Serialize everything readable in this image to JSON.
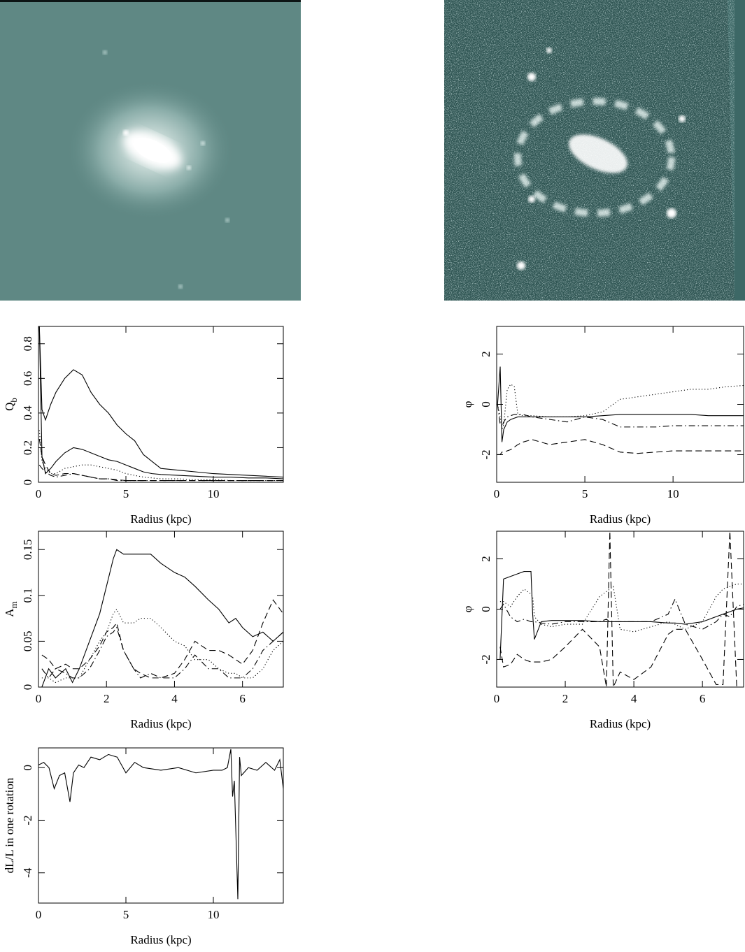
{
  "chart_data": [
    {
      "type": "line",
      "xlabel": "Radius (kpc)",
      "ylabel": "Q",
      "ylabel_sub": "b",
      "xlim": [
        0,
        14
      ],
      "xticks": [
        0,
        5,
        10
      ],
      "ylim": [
        0,
        0.9
      ],
      "yticks": [
        0,
        0.2,
        0.4,
        0.6,
        0.8
      ],
      "x": [
        0.05,
        0.2,
        0.4,
        0.7,
        1,
        1.5,
        2,
        2.5,
        3,
        3.5,
        4,
        4.5,
        5,
        5.5,
        6,
        6.5,
        7,
        8,
        9,
        10,
        11,
        12,
        13,
        14
      ],
      "series": [
        {
          "linestyle": "solid",
          "color": "#000000",
          "values": [
            0.9,
            0.42,
            0.36,
            0.45,
            0.52,
            0.6,
            0.65,
            0.62,
            0.52,
            0.45,
            0.4,
            0.33,
            0.28,
            0.24,
            0.16,
            0.12,
            0.08,
            0.07,
            0.06,
            0.05,
            0.045,
            0.04,
            0.035,
            0.03
          ]
        },
        {
          "linestyle": "solid",
          "color": "#000000",
          "values": [
            0.9,
            0.15,
            0.05,
            0.08,
            0.12,
            0.17,
            0.2,
            0.19,
            0.17,
            0.15,
            0.13,
            0.12,
            0.1,
            0.08,
            0.06,
            0.05,
            0.045,
            0.04,
            0.035,
            0.03,
            0.03,
            0.025,
            0.025,
            0.02
          ]
        },
        {
          "linestyle": "dotted",
          "color": "#000000",
          "values": [
            0.3,
            0.12,
            0.08,
            0.05,
            0.05,
            0.08,
            0.09,
            0.1,
            0.1,
            0.09,
            0.08,
            0.07,
            0.05,
            0.04,
            0.03,
            0.025,
            0.02,
            0.02,
            0.015,
            0.015,
            0.01,
            0.01,
            0.01,
            0.01
          ]
        },
        {
          "linestyle": "dashed",
          "color": "#000000",
          "values": [
            0.25,
            0.15,
            0.1,
            0.05,
            0.04,
            0.05,
            0.05,
            0.04,
            0.03,
            0.02,
            0.02,
            0.015,
            0.01,
            0.01,
            0.01,
            0.01,
            0.01,
            0.01,
            0.01,
            0.01,
            0.01,
            0.01,
            0.01,
            0.01
          ]
        },
        {
          "linestyle": "dashdot",
          "color": "#000000",
          "values": [
            0.1,
            0.08,
            0.06,
            0.04,
            0.03,
            0.04,
            0.05,
            0.04,
            0.03,
            0.02,
            0.02,
            0.01,
            0.01,
            0.01,
            0.01,
            0.01,
            0.01,
            0.01,
            0.01,
            0.01,
            0.01,
            0.01,
            0.01,
            0.01
          ]
        }
      ]
    },
    {
      "type": "line",
      "xlabel": "Radius (kpc)",
      "ylabel": "φ",
      "xlim": [
        0,
        14
      ],
      "xticks": [
        0,
        5,
        10
      ],
      "ylim": [
        -3.1,
        3.1
      ],
      "yticks": [
        -2,
        0,
        2
      ],
      "x": [
        0.05,
        0.2,
        0.3,
        0.4,
        0.6,
        0.8,
        1,
        1.2,
        1.5,
        2,
        3,
        4,
        5,
        6,
        7,
        8,
        9,
        10,
        11,
        12,
        13,
        14
      ],
      "series": [
        {
          "linestyle": "solid",
          "color": "#000000",
          "values": [
            0,
            1.5,
            -1.5,
            -1,
            -0.7,
            -0.6,
            -0.55,
            -0.5,
            -0.5,
            -0.5,
            -0.5,
            -0.5,
            -0.5,
            -0.45,
            -0.4,
            -0.4,
            -0.4,
            -0.4,
            -0.4,
            -0.45,
            -0.45,
            -0.45
          ]
        },
        {
          "linestyle": "dotted",
          "color": "#000000",
          "values": [
            0,
            -0.5,
            -1,
            -0.8,
            0.6,
            0.8,
            0.7,
            -0.4,
            -0.45,
            -0.45,
            -0.5,
            -0.5,
            -0.45,
            -0.3,
            0.2,
            0.3,
            0.4,
            0.5,
            0.6,
            0.6,
            0.7,
            0.75
          ]
        },
        {
          "linestyle": "dashed",
          "color": "#000000",
          "values": [
            -2,
            -2,
            -1.9,
            -1.9,
            -1.85,
            -1.8,
            -1.7,
            -1.6,
            -1.5,
            -1.4,
            -1.6,
            -1.5,
            -1.4,
            -1.6,
            -1.9,
            -1.95,
            -1.9,
            -1.85,
            -1.85,
            -1.85,
            -1.85,
            -1.85
          ]
        },
        {
          "linestyle": "dashdot",
          "color": "#000000",
          "values": [
            0,
            -0.8,
            -0.9,
            -0.7,
            -0.5,
            -0.45,
            -0.4,
            -0.4,
            -0.4,
            -0.5,
            -0.6,
            -0.7,
            -0.5,
            -0.6,
            -0.9,
            -0.9,
            -0.9,
            -0.85,
            -0.85,
            -0.85,
            -0.85,
            -0.85
          ]
        }
      ]
    },
    {
      "type": "line",
      "xlabel": "Radius (kpc)",
      "ylabel": "A",
      "ylabel_sub": "m",
      "xlim": [
        0,
        7.2
      ],
      "xticks": [
        0,
        2,
        4,
        6
      ],
      "ylim": [
        0,
        0.17
      ],
      "yticks": [
        0,
        0.05,
        0.1,
        0.15
      ],
      "x": [
        0.1,
        0.3,
        0.5,
        0.8,
        1,
        1.2,
        1.5,
        1.8,
        2,
        2.2,
        2.3,
        2.5,
        2.8,
        3,
        3.3,
        3.6,
        4,
        4.3,
        4.6,
        5,
        5.3,
        5.6,
        5.8,
        6,
        6.3,
        6.6,
        6.9,
        7.2
      ],
      "series": [
        {
          "linestyle": "solid",
          "color": "#000000",
          "values": [
            0,
            0.02,
            0.01,
            0.02,
            0.005,
            0.02,
            0.05,
            0.08,
            0.11,
            0.14,
            0.15,
            0.145,
            0.145,
            0.145,
            0.145,
            0.135,
            0.125,
            0.12,
            0.11,
            0.095,
            0.085,
            0.07,
            0.075,
            0.065,
            0.055,
            0.06,
            0.05,
            0.06
          ]
        },
        {
          "linestyle": "dotted",
          "color": "#000000",
          "values": [
            0.01,
            0.01,
            0.005,
            0.01,
            0.01,
            0.01,
            0.03,
            0.05,
            0.06,
            0.08,
            0.085,
            0.07,
            0.07,
            0.075,
            0.075,
            0.065,
            0.05,
            0.045,
            0.03,
            0.03,
            0.02,
            0.015,
            0.015,
            0.01,
            0.01,
            0.02,
            0.04,
            0.05
          ]
        },
        {
          "linestyle": "dashed",
          "color": "#000000",
          "values": [
            0.035,
            0.03,
            0.02,
            0.025,
            0.02,
            0.02,
            0.03,
            0.045,
            0.06,
            0.065,
            0.07,
            0.04,
            0.02,
            0.015,
            0.01,
            0.01,
            0.015,
            0.03,
            0.05,
            0.04,
            0.04,
            0.035,
            0.03,
            0.025,
            0.04,
            0.07,
            0.095,
            0.08
          ]
        },
        {
          "linestyle": "dashdot",
          "color": "#000000",
          "values": [
            0.02,
            0.01,
            0.02,
            0.015,
            0.01,
            0.01,
            0.02,
            0.04,
            0.055,
            0.06,
            0.065,
            0.04,
            0.02,
            0.01,
            0.015,
            0.01,
            0.01,
            0.02,
            0.035,
            0.02,
            0.02,
            0.01,
            0.01,
            0.01,
            0.02,
            0.04,
            0.05,
            0.06
          ]
        }
      ]
    },
    {
      "type": "line",
      "xlabel": "Radius (kpc)",
      "ylabel": "φ",
      "xlim": [
        0,
        7.2
      ],
      "xticks": [
        0,
        2,
        4,
        6
      ],
      "ylim": [
        -3.1,
        3.1
      ],
      "yticks": [
        -2,
        0,
        2
      ],
      "x": [
        0.1,
        0.2,
        0.4,
        0.6,
        0.8,
        1,
        1.05,
        1.1,
        1.3,
        1.6,
        2,
        2.5,
        3,
        3.2,
        3.3,
        3.4,
        3.6,
        4,
        4.5,
        5,
        5.2,
        5.5,
        6,
        6.4,
        6.6,
        6.8,
        7,
        7.2
      ],
      "series": [
        {
          "linestyle": "solid",
          "color": "#000000",
          "values": [
            -2,
            1.2,
            1.3,
            1.4,
            1.5,
            1.5,
            -0.2,
            -1.2,
            -0.5,
            -0.45,
            -0.45,
            -0.45,
            -0.5,
            -0.5,
            -0.5,
            -0.5,
            -0.5,
            -0.5,
            -0.5,
            -0.55,
            -0.55,
            -0.6,
            -0.5,
            -0.3,
            -0.2,
            -0.1,
            0,
            0.05
          ]
        },
        {
          "linestyle": "dotted",
          "color": "#000000",
          "values": [
            0.3,
            0.3,
            0.1,
            0.5,
            0.8,
            0.6,
            0.5,
            -0.3,
            -0.6,
            -0.7,
            -0.6,
            -0.6,
            0.5,
            0.7,
            0.8,
            0.9,
            -0.8,
            -0.9,
            -0.7,
            -0.5,
            -0.6,
            -0.8,
            -0.5,
            0.5,
            0.8,
            0.9,
            1.0,
            1.0
          ]
        },
        {
          "linestyle": "dashed",
          "color": "#000000",
          "values": [
            -1.5,
            -2.3,
            -2.2,
            -1.8,
            -2,
            -2.1,
            -2.1,
            -2.1,
            -2.1,
            -2,
            -1.5,
            -0.8,
            -1.5,
            -3.1,
            3.1,
            -3.1,
            -2.5,
            -2.8,
            -2.3,
            -1,
            -0.8,
            -0.8,
            -2,
            -3,
            -3,
            3.1,
            -3.1,
            -3.1
          ]
        },
        {
          "linestyle": "dashdot",
          "color": "#000000",
          "values": [
            0,
            0.2,
            -0.3,
            -0.5,
            -0.4,
            -0.5,
            -0.5,
            -0.5,
            -0.55,
            -0.6,
            -0.5,
            -0.5,
            -0.5,
            -0.4,
            -0.5,
            -0.5,
            -0.5,
            -0.5,
            -0.5,
            -0.2,
            0.4,
            -0.6,
            -0.8,
            -0.5,
            -0.2,
            -0.3,
            0.1,
            0.2
          ]
        }
      ]
    },
    {
      "type": "line",
      "xlabel": "Radius (kpc)",
      "ylabel": "dL/L in one rotation",
      "xlim": [
        0,
        14
      ],
      "xticks": [
        0,
        5,
        10
      ],
      "ylim": [
        -5.15,
        0.75
      ],
      "yticks": [
        -4,
        -2,
        0
      ],
      "x": [
        0,
        0.3,
        0.6,
        0.9,
        1.2,
        1.5,
        1.8,
        2,
        2.3,
        2.6,
        3,
        3.5,
        4,
        4.5,
        5,
        5.5,
        6,
        7,
        8,
        9,
        10,
        10.5,
        10.8,
        11,
        11.1,
        11.2,
        11.4,
        11.5,
        11.6,
        12,
        12.5,
        13,
        13.5,
        13.8,
        14
      ],
      "series": [
        {
          "linestyle": "solid",
          "color": "#000000",
          "values": [
            0.1,
            0.2,
            0,
            -0.8,
            -0.3,
            -0.2,
            -1.3,
            -0.2,
            0.1,
            0,
            0.4,
            0.3,
            0.5,
            0.4,
            -0.2,
            0.2,
            0,
            -0.1,
            0,
            -0.2,
            -0.1,
            -0.1,
            0,
            0.7,
            -1.1,
            -0.5,
            -5,
            0.4,
            -0.3,
            0,
            -0.1,
            0.2,
            -0.1,
            0.3,
            -0.8
          ]
        }
      ]
    }
  ]
}
